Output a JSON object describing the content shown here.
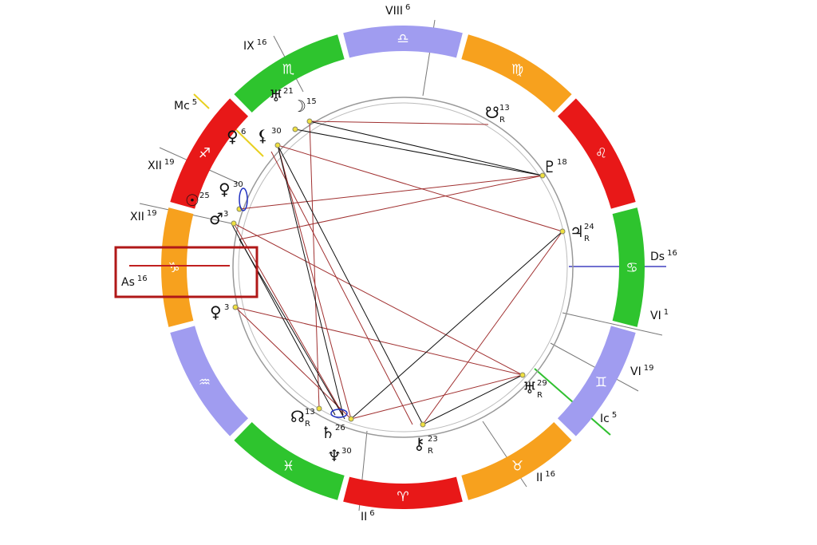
{
  "houses": [
    {
      "label": "VIII",
      "degree": 6
    },
    {
      "label": "IX",
      "degree": 16
    },
    {
      "label": "Mc",
      "degree": 5
    },
    {
      "label": "XII",
      "degree": 19
    },
    {
      "label": "XII",
      "degree": 19
    },
    {
      "label": "As",
      "degree": 16
    },
    {
      "label": "Ds",
      "degree": 16
    },
    {
      "label": "VI",
      "degree": 1
    },
    {
      "label": "VI",
      "degree": 19
    },
    {
      "label": "Ic",
      "degree": 5
    },
    {
      "label": "II",
      "degree": 16
    },
    {
      "label": "II",
      "degree": 6
    }
  ],
  "signs": [
    {
      "glyph": "♎",
      "color": "#a09cf0"
    },
    {
      "glyph": "♍",
      "color": "#f7a11e"
    },
    {
      "glyph": "♌",
      "color": "#e81818"
    },
    {
      "glyph": "♋",
      "color": "#2ec42e"
    },
    {
      "glyph": "♊",
      "color": "#a09cf0"
    },
    {
      "glyph": "♉",
      "color": "#f7a11e"
    },
    {
      "glyph": "♈",
      "color": "#e81818"
    },
    {
      "glyph": "♓",
      "color": "#2ec42e"
    },
    {
      "glyph": "♒",
      "color": "#a09cf0"
    },
    {
      "glyph": "♑",
      "color": "#f7a11e"
    },
    {
      "glyph": "♐",
      "color": "#e81818"
    },
    {
      "glyph": "♏",
      "color": "#2ec42e"
    }
  ],
  "planets": [
    {
      "glyph": "♅",
      "degree": 21
    },
    {
      "glyph": "☽",
      "degree": 15
    },
    {
      "glyph": "☋",
      "degree": 13,
      "retrograde": "R"
    },
    {
      "glyph": "♀",
      "degree": 6
    },
    {
      "glyph": "⚸",
      "degree": 30
    },
    {
      "glyph": "♇",
      "degree": 18
    },
    {
      "glyph": "♃",
      "degree": 24,
      "retrograde": "R"
    },
    {
      "glyph": "☉",
      "degree": 25
    },
    {
      "glyph": "♀",
      "degree": 30
    },
    {
      "glyph": "♂",
      "degree": 3
    },
    {
      "glyph": "♀",
      "degree": 3
    },
    {
      "glyph": "♅",
      "degree": 29,
      "retrograde": "R"
    },
    {
      "glyph": "☊",
      "degree": 13,
      "retrograde": "R"
    },
    {
      "glyph": "♄",
      "degree": 26
    },
    {
      "glyph": "♆",
      "degree": 30
    },
    {
      "glyph": "⚷",
      "degree": 23,
      "retrograde": "R"
    }
  ]
}
